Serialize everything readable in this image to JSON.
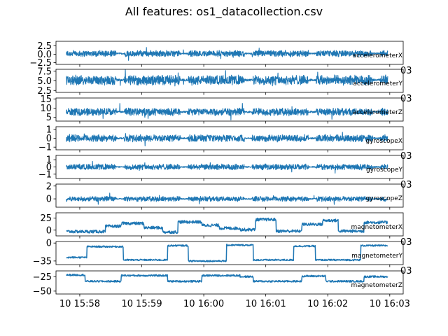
{
  "chart_data": {
    "type": "line",
    "title": "All features: os1_datacollection.csv",
    "color": "#1f77b4",
    "x_axis": {
      "type": "datetime",
      "range": [
        "15:57:37",
        "16:03:13"
      ],
      "ticks": [
        {
          "time": "15:58",
          "label": "10 15:58"
        },
        {
          "time": "15:59",
          "label": "10 15:59"
        },
        {
          "time": "16:00",
          "label": "10 16:00"
        },
        {
          "time": "16:01",
          "label": "10 16:01"
        },
        {
          "time": "16:02",
          "label": "10 16:02"
        },
        {
          "time": "16:03",
          "label": "10 16:03"
        }
      ],
      "data_start": "15:57:47",
      "data_end": "16:02:58"
    },
    "overlap_fragment": "03",
    "panels": [
      {
        "name": "accelerometerX",
        "ylim": [
          -3,
          3.8
        ],
        "yticks": [
          {
            "v": 2.5,
            "label": "2.5"
          },
          {
            "v": 0,
            "label": "0.0"
          },
          {
            "v": -2.5,
            "label": "−2.5"
          }
        ],
        "baseline": 0.2,
        "amplitude": 0.8,
        "segments": [
          {
            "start": "15:57:47",
            "end": "16:02:58",
            "mean": 0.2
          }
        ]
      },
      {
        "name": "accelerometerY",
        "ylim": [
          2,
          8
        ],
        "yticks": [
          {
            "v": 7.5,
            "label": "7.5"
          },
          {
            "v": 5,
            "label": "5.0"
          },
          {
            "v": 2.5,
            "label": "2.5"
          }
        ],
        "baseline": 5.2,
        "amplitude": 1.1,
        "segments": [
          {
            "start": "15:57:47",
            "end": "16:02:58",
            "mean": 5.2
          }
        ]
      },
      {
        "name": "accelerometerZ",
        "ylim": [
          3,
          15.5
        ],
        "yticks": [
          {
            "v": 15,
            "label": "15"
          },
          {
            "v": 10,
            "label": "10"
          },
          {
            "v": 5,
            "label": "5"
          }
        ],
        "baseline": 8,
        "amplitude": 1.8,
        "segments": [
          {
            "start": "15:57:47",
            "end": "16:02:58",
            "mean": 8
          }
        ]
      },
      {
        "name": "gyroscopeX",
        "ylim": [
          -1.3,
          1.3
        ],
        "yticks": [
          {
            "v": 1,
            "label": "1"
          },
          {
            "v": 0,
            "label": "0"
          },
          {
            "v": -1,
            "label": "−1"
          }
        ],
        "baseline": 0,
        "amplitude": 0.35,
        "segments": [
          {
            "start": "15:57:47",
            "end": "16:02:58",
            "mean": 0
          }
        ]
      },
      {
        "name": "gyroscopeY",
        "ylim": [
          -1.6,
          1.6
        ],
        "yticks": [
          {
            "v": 1,
            "label": "1"
          },
          {
            "v": 0,
            "label": "0"
          },
          {
            "v": -1,
            "label": "−1"
          }
        ],
        "baseline": 0,
        "amplitude": 0.35,
        "segments": [
          {
            "start": "15:57:47",
            "end": "16:02:58",
            "mean": 0
          }
        ]
      },
      {
        "name": "gyroscopeZ",
        "ylim": [
          -1.3,
          2.3
        ],
        "yticks": [
          {
            "v": 2,
            "label": "2"
          },
          {
            "v": 0,
            "label": "0"
          }
        ],
        "baseline": 0,
        "amplitude": 0.35,
        "segments": [
          {
            "start": "15:57:47",
            "end": "16:02:58",
            "mean": 0
          }
        ]
      },
      {
        "name": "magnetometerX",
        "ylim": [
          -12,
          36
        ],
        "yticks": [
          {
            "v": 25,
            "label": "25"
          },
          {
            "v": 0,
            "label": "0"
          }
        ],
        "baseline": 0,
        "amplitude": 3,
        "segments": [
          {
            "start": "15:57:47",
            "end": "15:58:25",
            "mean": -3
          },
          {
            "start": "15:58:25",
            "end": "15:58:40",
            "mean": 8
          },
          {
            "start": "15:58:40",
            "end": "15:59:02",
            "mean": 14
          },
          {
            "start": "15:59:02",
            "end": "15:59:20",
            "mean": 5
          },
          {
            "start": "15:59:20",
            "end": "15:59:35",
            "mean": -4
          },
          {
            "start": "15:59:35",
            "end": "15:59:58",
            "mean": 17
          },
          {
            "start": "15:59:58",
            "end": "16:00:15",
            "mean": 10
          },
          {
            "start": "16:00:15",
            "end": "16:00:35",
            "mean": 4
          },
          {
            "start": "16:00:35",
            "end": "16:00:50",
            "mean": 1
          },
          {
            "start": "16:00:50",
            "end": "16:01:10",
            "mean": 22
          },
          {
            "start": "16:01:10",
            "end": "16:01:35",
            "mean": -2
          },
          {
            "start": "16:01:35",
            "end": "16:01:55",
            "mean": 12
          },
          {
            "start": "16:01:55",
            "end": "16:02:10",
            "mean": 20
          },
          {
            "start": "16:02:10",
            "end": "16:02:35",
            "mean": -2
          },
          {
            "start": "16:02:35",
            "end": "16:02:58",
            "mean": 16
          }
        ]
      },
      {
        "name": "magnetometerY",
        "ylim": [
          -42,
          3
        ],
        "yticks": [
          {
            "v": 0,
            "label": "0"
          },
          {
            "v": -35,
            "label": "−35"
          }
        ],
        "baseline": -20,
        "amplitude": 1.5,
        "segments": [
          {
            "start": "15:57:47",
            "end": "15:58:07",
            "mean": -28
          },
          {
            "start": "15:58:07",
            "end": "15:58:42",
            "mean": -7
          },
          {
            "start": "15:58:42",
            "end": "15:59:25",
            "mean": -33
          },
          {
            "start": "15:59:25",
            "end": "15:59:45",
            "mean": -5
          },
          {
            "start": "15:59:45",
            "end": "16:00:22",
            "mean": -35
          },
          {
            "start": "16:00:22",
            "end": "16:00:48",
            "mean": -4
          },
          {
            "start": "16:00:48",
            "end": "16:01:27",
            "mean": -33
          },
          {
            "start": "16:01:27",
            "end": "16:01:48",
            "mean": -6
          },
          {
            "start": "16:01:48",
            "end": "16:02:32",
            "mean": -33
          },
          {
            "start": "16:02:32",
            "end": "16:02:58",
            "mean": -5
          }
        ]
      },
      {
        "name": "magnetometerZ",
        "ylim": [
          -55,
          -15
        ],
        "yticks": [
          {
            "v": -25,
            "label": "−25"
          },
          {
            "v": -50,
            "label": "−50"
          }
        ],
        "baseline": -30,
        "amplitude": 1.5,
        "segments": [
          {
            "start": "15:57:47",
            "end": "15:58:05",
            "mean": -22
          },
          {
            "start": "15:58:05",
            "end": "15:58:40",
            "mean": -33
          },
          {
            "start": "15:58:40",
            "end": "15:59:25",
            "mean": -23
          },
          {
            "start": "15:59:25",
            "end": "15:59:58",
            "mean": -33
          },
          {
            "start": "15:59:58",
            "end": "16:00:35",
            "mean": -23
          },
          {
            "start": "16:00:35",
            "end": "16:00:48",
            "mean": -25
          },
          {
            "start": "16:00:48",
            "end": "16:01:35",
            "mean": -33
          },
          {
            "start": "16:01:35",
            "end": "16:01:58",
            "mean": -24
          },
          {
            "start": "16:01:58",
            "end": "16:02:35",
            "mean": -33
          },
          {
            "start": "16:02:35",
            "end": "16:02:58",
            "mean": -25
          }
        ]
      }
    ]
  }
}
